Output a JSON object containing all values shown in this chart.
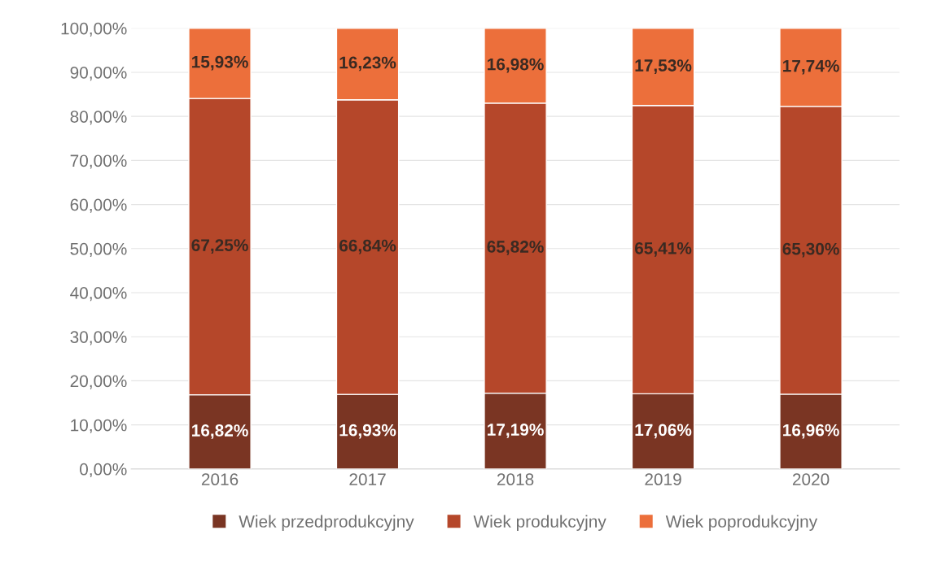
{
  "chart_data": {
    "type": "bar",
    "stacked": true,
    "categories": [
      "2016",
      "2017",
      "2018",
      "2019",
      "2020"
    ],
    "series": [
      {
        "name": "Wiek przedprodukcyjny",
        "color": "#7a3523",
        "values": [
          16.82,
          16.93,
          17.19,
          17.06,
          16.96
        ],
        "value_labels": [
          "16,82%",
          "16,93%",
          "17,19%",
          "17,06%",
          "16,96%"
        ]
      },
      {
        "name": "Wiek produkcyjny",
        "color": "#b5472a",
        "values": [
          67.25,
          66.84,
          65.82,
          65.41,
          65.3
        ],
        "value_labels": [
          "67,25%",
          "66,84%",
          "65,82%",
          "65,41%",
          "65,30%"
        ]
      },
      {
        "name": "Wiek poprodukcyjny",
        "color": "#ec6f3b",
        "values": [
          15.93,
          16.23,
          16.98,
          17.53,
          17.74
        ],
        "value_labels": [
          "15,93%",
          "16,23%",
          "16,98%",
          "17,53%",
          "17,74%"
        ]
      }
    ],
    "ylim": [
      0,
      100
    ],
    "yticks": [
      {
        "value": 0,
        "label": "0,00%"
      },
      {
        "value": 10,
        "label": "10,00%"
      },
      {
        "value": 20,
        "label": "20,00%"
      },
      {
        "value": 30,
        "label": "30,00%"
      },
      {
        "value": 40,
        "label": "40,00%"
      },
      {
        "value": 50,
        "label": "50,00%"
      },
      {
        "value": 60,
        "label": "60,00%"
      },
      {
        "value": 70,
        "label": "70,00%"
      },
      {
        "value": 80,
        "label": "80,00%"
      },
      {
        "value": 90,
        "label": "90,00%"
      },
      {
        "value": 100,
        "label": "100,00%"
      }
    ],
    "grid": "y",
    "legend": "bottom"
  }
}
